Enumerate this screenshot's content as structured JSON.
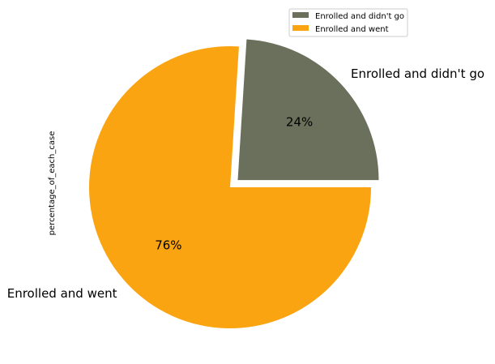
{
  "chart_data": {
    "type": "pie",
    "ylabel": "percentage_of_each_case",
    "slices": [
      {
        "label": "Enrolled and didn't go",
        "value": 24,
        "pct_label": "24%",
        "color": "#6b705c",
        "exploded": true
      },
      {
        "label": "Enrolled and went",
        "value": 76,
        "pct_label": "76%",
        "color": "#fba412",
        "exploded": false
      }
    ],
    "legend": {
      "placement": "top-right",
      "entries": [
        "Enrolled and didn't go",
        "Enrolled and went"
      ]
    }
  }
}
